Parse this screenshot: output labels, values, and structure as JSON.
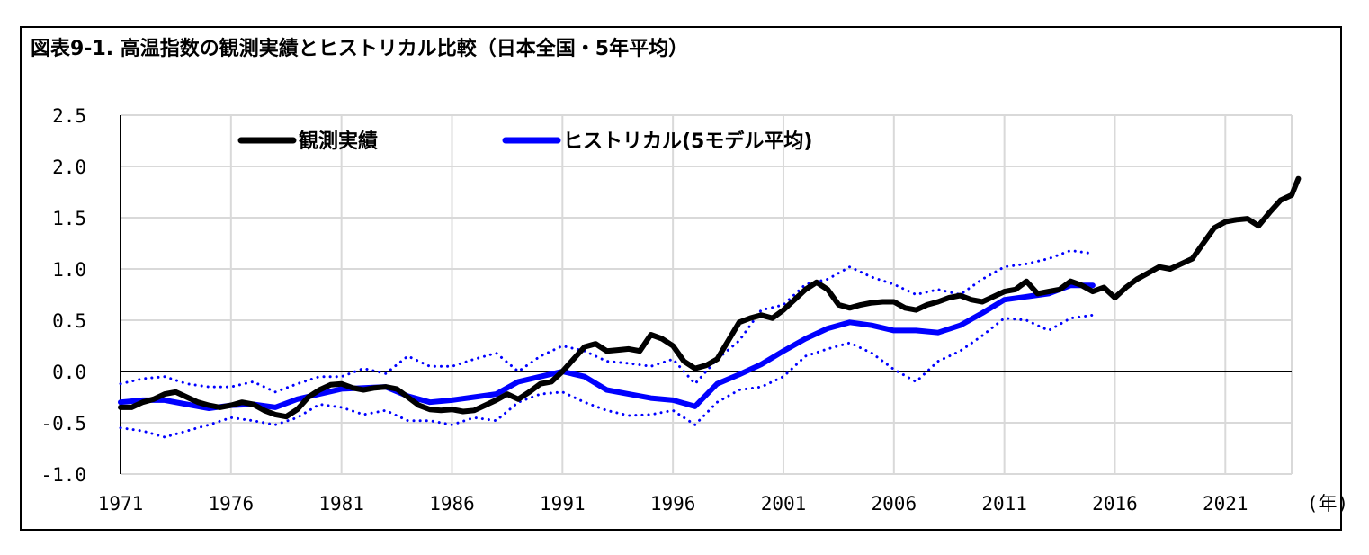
{
  "title": "図表9-1. 高温指数の観測実績とヒストリカル比較（日本全国・5年平均）",
  "chart_data": {
    "type": "line",
    "xlabel": "",
    "ylabel": "",
    "x_unit_label": "(年)",
    "xlim": [
      1971,
      2024
    ],
    "ylim": [
      -1.0,
      2.5
    ],
    "y_ticks": [
      "2.5",
      "2.0",
      "1.5",
      "1.0",
      "0.5",
      "0.0",
      "-0.5",
      "-1.0"
    ],
    "y_tick_values": [
      2.5,
      2.0,
      1.5,
      1.0,
      0.5,
      0.0,
      -0.5,
      -1.0
    ],
    "x_ticks": [
      "1971",
      "1976",
      "1981",
      "1986",
      "1991",
      "1996",
      "2001",
      "2006",
      "2011",
      "2016",
      "2021"
    ],
    "x_tick_values": [
      1971,
      1976,
      1981,
      1986,
      1991,
      1996,
      2001,
      2006,
      2011,
      2016,
      2021
    ],
    "grid": true,
    "legend_position": "top-left",
    "series": [
      {
        "name": "観測実績",
        "color": "#000000",
        "style": "solid",
        "points": [
          [
            1971,
            -0.35
          ],
          [
            1971.5,
            -0.35
          ],
          [
            1972,
            -0.3
          ],
          [
            1972.5,
            -0.27
          ],
          [
            1973,
            -0.22
          ],
          [
            1973.5,
            -0.2
          ],
          [
            1974,
            -0.25
          ],
          [
            1974.5,
            -0.3
          ],
          [
            1975,
            -0.33
          ],
          [
            1975.5,
            -0.35
          ],
          [
            1976,
            -0.33
          ],
          [
            1976.5,
            -0.3
          ],
          [
            1977,
            -0.32
          ],
          [
            1977.5,
            -0.38
          ],
          [
            1978,
            -0.42
          ],
          [
            1978.5,
            -0.44
          ],
          [
            1979,
            -0.37
          ],
          [
            1979.5,
            -0.25
          ],
          [
            1980,
            -0.18
          ],
          [
            1980.5,
            -0.13
          ],
          [
            1981,
            -0.12
          ],
          [
            1981.5,
            -0.16
          ],
          [
            1982,
            -0.18
          ],
          [
            1982.5,
            -0.16
          ],
          [
            1983,
            -0.15
          ],
          [
            1983.5,
            -0.17
          ],
          [
            1984,
            -0.25
          ],
          [
            1984.5,
            -0.33
          ],
          [
            1985,
            -0.37
          ],
          [
            1985.5,
            -0.38
          ],
          [
            1986,
            -0.37
          ],
          [
            1986.5,
            -0.39
          ],
          [
            1987,
            -0.38
          ],
          [
            1987.5,
            -0.33
          ],
          [
            1988,
            -0.28
          ],
          [
            1988.5,
            -0.22
          ],
          [
            1989,
            -0.27
          ],
          [
            1989.5,
            -0.2
          ],
          [
            1990,
            -0.12
          ],
          [
            1990.5,
            -0.1
          ],
          [
            1991,
            0.0
          ],
          [
            1991.5,
            0.12
          ],
          [
            1992,
            0.24
          ],
          [
            1992.5,
            0.27
          ],
          [
            1993,
            0.2
          ],
          [
            1993.5,
            0.21
          ],
          [
            1994,
            0.22
          ],
          [
            1994.5,
            0.2
          ],
          [
            1995,
            0.36
          ],
          [
            1995.5,
            0.32
          ],
          [
            1996,
            0.25
          ],
          [
            1996.5,
            0.1
          ],
          [
            1997,
            0.03
          ],
          [
            1997.5,
            0.06
          ],
          [
            1998,
            0.12
          ],
          [
            1998.5,
            0.3
          ],
          [
            1999,
            0.48
          ],
          [
            1999.5,
            0.52
          ],
          [
            2000,
            0.55
          ],
          [
            2000.5,
            0.52
          ],
          [
            2001,
            0.6
          ],
          [
            2001.5,
            0.7
          ],
          [
            2002,
            0.8
          ],
          [
            2002.5,
            0.87
          ],
          [
            2003,
            0.8
          ],
          [
            2003.5,
            0.65
          ],
          [
            2004,
            0.62
          ],
          [
            2004.5,
            0.65
          ],
          [
            2005,
            0.67
          ],
          [
            2005.5,
            0.68
          ],
          [
            2006,
            0.68
          ],
          [
            2006.5,
            0.62
          ],
          [
            2007,
            0.6
          ],
          [
            2007.5,
            0.65
          ],
          [
            2008,
            0.68
          ],
          [
            2008.5,
            0.72
          ],
          [
            2009,
            0.74
          ],
          [
            2009.5,
            0.7
          ],
          [
            2010,
            0.68
          ],
          [
            2010.5,
            0.73
          ],
          [
            2011,
            0.78
          ],
          [
            2011.5,
            0.8
          ],
          [
            2012,
            0.88
          ],
          [
            2012.5,
            0.76
          ],
          [
            2013,
            0.78
          ],
          [
            2013.5,
            0.8
          ],
          [
            2014,
            0.88
          ],
          [
            2014.5,
            0.84
          ],
          [
            2015,
            0.78
          ],
          [
            2015.5,
            0.82
          ],
          [
            2016,
            0.72
          ],
          [
            2016.5,
            0.82
          ],
          [
            2017,
            0.9
          ],
          [
            2017.5,
            0.96
          ],
          [
            2018,
            1.02
          ],
          [
            2018.5,
            1.0
          ],
          [
            2019,
            1.05
          ],
          [
            2019.5,
            1.1
          ],
          [
            2020,
            1.25
          ],
          [
            2020.5,
            1.4
          ],
          [
            2021,
            1.46
          ],
          [
            2021.5,
            1.48
          ],
          [
            2022,
            1.49
          ],
          [
            2022.5,
            1.42
          ],
          [
            2023,
            1.55
          ],
          [
            2023.5,
            1.67
          ],
          [
            2024,
            1.72
          ],
          [
            2024.3,
            1.88
          ]
        ]
      },
      {
        "name": "ヒストリカル(5モデル平均)",
        "color": "#0000ff",
        "style": "solid",
        "points": [
          [
            1971,
            -0.3
          ],
          [
            1972,
            -0.28
          ],
          [
            1973,
            -0.28
          ],
          [
            1974,
            -0.32
          ],
          [
            1975,
            -0.36
          ],
          [
            1976,
            -0.33
          ],
          [
            1977,
            -0.32
          ],
          [
            1978,
            -0.35
          ],
          [
            1979,
            -0.27
          ],
          [
            1980,
            -0.22
          ],
          [
            1981,
            -0.17
          ],
          [
            1982,
            -0.16
          ],
          [
            1983,
            -0.15
          ],
          [
            1984,
            -0.24
          ],
          [
            1985,
            -0.3
          ],
          [
            1986,
            -0.28
          ],
          [
            1987,
            -0.25
          ],
          [
            1988,
            -0.22
          ],
          [
            1989,
            -0.1
          ],
          [
            1990,
            -0.05
          ],
          [
            1991,
            0.0
          ],
          [
            1992,
            -0.05
          ],
          [
            1993,
            -0.18
          ],
          [
            1994,
            -0.22
          ],
          [
            1995,
            -0.26
          ],
          [
            1996,
            -0.28
          ],
          [
            1997,
            -0.34
          ],
          [
            1998,
            -0.12
          ],
          [
            1999,
            -0.03
          ],
          [
            2000,
            0.07
          ],
          [
            2001,
            0.2
          ],
          [
            2002,
            0.32
          ],
          [
            2003,
            0.42
          ],
          [
            2004,
            0.48
          ],
          [
            2005,
            0.45
          ],
          [
            2006,
            0.4
          ],
          [
            2007,
            0.4
          ],
          [
            2008,
            0.38
          ],
          [
            2009,
            0.45
          ],
          [
            2010,
            0.57
          ],
          [
            2011,
            0.7
          ],
          [
            2012,
            0.73
          ],
          [
            2013,
            0.76
          ],
          [
            2014,
            0.84
          ],
          [
            2015,
            0.84
          ]
        ]
      },
      {
        "name": "",
        "color": "#0000ff",
        "style": "dotted",
        "points": [
          [
            1971,
            -0.12
          ],
          [
            1972,
            -0.07
          ],
          [
            1973,
            -0.05
          ],
          [
            1974,
            -0.12
          ],
          [
            1975,
            -0.15
          ],
          [
            1976,
            -0.15
          ],
          [
            1977,
            -0.1
          ],
          [
            1978,
            -0.2
          ],
          [
            1979,
            -0.12
          ],
          [
            1980,
            -0.05
          ],
          [
            1981,
            -0.05
          ],
          [
            1982,
            0.03
          ],
          [
            1983,
            -0.02
          ],
          [
            1984,
            0.15
          ],
          [
            1985,
            0.05
          ],
          [
            1986,
            0.05
          ],
          [
            1987,
            0.12
          ],
          [
            1988,
            0.18
          ],
          [
            1989,
            0.0
          ],
          [
            1990,
            0.15
          ],
          [
            1991,
            0.25
          ],
          [
            1992,
            0.2
          ],
          [
            1993,
            0.1
          ],
          [
            1994,
            0.08
          ],
          [
            1995,
            0.05
          ],
          [
            1996,
            0.12
          ],
          [
            1997,
            -0.12
          ],
          [
            1998,
            0.12
          ],
          [
            1999,
            0.3
          ],
          [
            2000,
            0.6
          ],
          [
            2001,
            0.65
          ],
          [
            2002,
            0.85
          ],
          [
            2003,
            0.9
          ],
          [
            2004,
            1.02
          ],
          [
            2005,
            0.92
          ],
          [
            2006,
            0.85
          ],
          [
            2007,
            0.75
          ],
          [
            2008,
            0.8
          ],
          [
            2009,
            0.75
          ],
          [
            2010,
            0.9
          ],
          [
            2011,
            1.02
          ],
          [
            2012,
            1.05
          ],
          [
            2013,
            1.1
          ],
          [
            2014,
            1.18
          ],
          [
            2015,
            1.15
          ]
        ]
      },
      {
        "name": "",
        "color": "#0000ff",
        "style": "dotted",
        "points": [
          [
            1971,
            -0.55
          ],
          [
            1972,
            -0.58
          ],
          [
            1973,
            -0.64
          ],
          [
            1974,
            -0.58
          ],
          [
            1975,
            -0.52
          ],
          [
            1976,
            -0.45
          ],
          [
            1977,
            -0.48
          ],
          [
            1978,
            -0.52
          ],
          [
            1979,
            -0.45
          ],
          [
            1980,
            -0.32
          ],
          [
            1981,
            -0.35
          ],
          [
            1982,
            -0.42
          ],
          [
            1983,
            -0.38
          ],
          [
            1984,
            -0.48
          ],
          [
            1985,
            -0.48
          ],
          [
            1986,
            -0.52
          ],
          [
            1987,
            -0.45
          ],
          [
            1988,
            -0.48
          ],
          [
            1989,
            -0.3
          ],
          [
            1990,
            -0.22
          ],
          [
            1991,
            -0.2
          ],
          [
            1992,
            -0.3
          ],
          [
            1993,
            -0.38
          ],
          [
            1994,
            -0.43
          ],
          [
            1995,
            -0.42
          ],
          [
            1996,
            -0.38
          ],
          [
            1997,
            -0.52
          ],
          [
            1998,
            -0.3
          ],
          [
            1999,
            -0.18
          ],
          [
            2000,
            -0.15
          ],
          [
            2001,
            -0.05
          ],
          [
            2002,
            0.15
          ],
          [
            2003,
            0.22
          ],
          [
            2004,
            0.28
          ],
          [
            2005,
            0.18
          ],
          [
            2006,
            0.02
          ],
          [
            2007,
            -0.1
          ],
          [
            2008,
            0.1
          ],
          [
            2009,
            0.2
          ],
          [
            2010,
            0.35
          ],
          [
            2011,
            0.52
          ],
          [
            2012,
            0.5
          ],
          [
            2013,
            0.4
          ],
          [
            2014,
            0.52
          ],
          [
            2015,
            0.55
          ]
        ]
      }
    ]
  }
}
